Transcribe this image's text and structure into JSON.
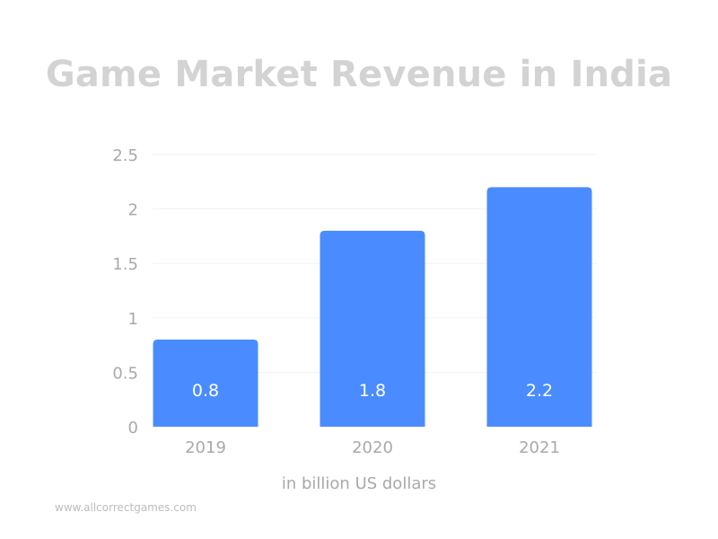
{
  "chart_data": {
    "type": "bar",
    "title": "Game Market Revenue in India",
    "categories": [
      "2019",
      "2020",
      "2021"
    ],
    "values": [
      0.8,
      1.8,
      2.2
    ],
    "data_labels": [
      "0.8",
      "1.8",
      "2.2"
    ],
    "xlabel": "in billion US dollars",
    "ylabel": "",
    "ylim": [
      0,
      2.5
    ],
    "yticks": [
      "0",
      "0.5",
      "1",
      "1.5",
      "2",
      "2.5"
    ],
    "grid": true,
    "legend": "none",
    "bar_color": "#4a8cff"
  },
  "watermark": "www.allcorrectgames.com",
  "colors": {
    "title": "#d3d3d3",
    "tick_label": "#a9a9a9",
    "gridline": "#f1f1f1",
    "data_label": "#ffffff"
  }
}
